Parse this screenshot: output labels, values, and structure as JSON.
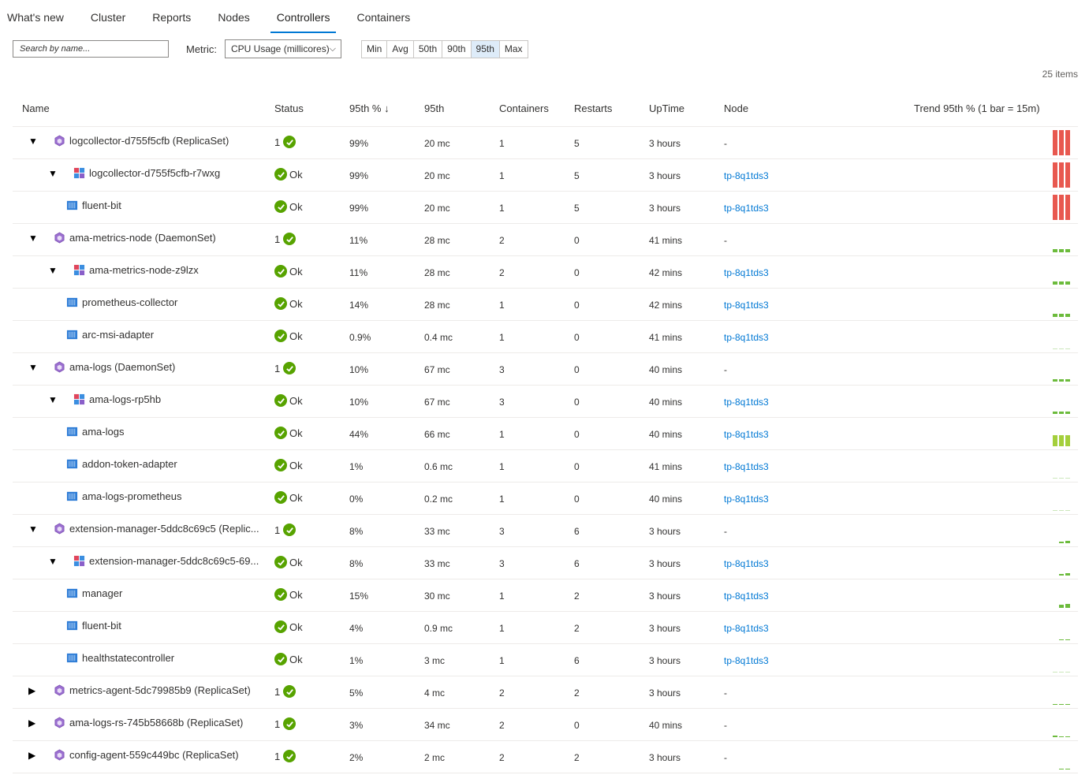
{
  "tabs": [
    "What's new",
    "Cluster",
    "Reports",
    "Nodes",
    "Controllers",
    "Containers"
  ],
  "active_tab": "Controllers",
  "search": {
    "placeholder": "Search by name..."
  },
  "metric": {
    "label": "Metric:",
    "selected": "CPU Usage (millicores)"
  },
  "aggregations": [
    "Min",
    "Avg",
    "50th",
    "90th",
    "95th",
    "Max"
  ],
  "active_aggregation": "95th",
  "item_count": "25 items",
  "columns": {
    "name": "Name",
    "status": "Status",
    "pct": "95th % ↓",
    "val": "95th",
    "containers": "Containers",
    "restarts": "Restarts",
    "uptime": "UpTime",
    "node": "Node",
    "trend": "Trend 95th % (1 bar = 15m)"
  },
  "colors": {
    "red": "#e8584f",
    "green": "#6cbb3c",
    "lime": "#a4cf3c",
    "accent": "#0078d4",
    "ok": "#57a300"
  },
  "rows": [
    {
      "level": 0,
      "type": "controller",
      "expanded": true,
      "name": "logcollector-d755f5cfb (ReplicaSet)",
      "status": "1",
      "pct": "99%",
      "val": "20 mc",
      "containers": "1",
      "restarts": "5",
      "uptime": "3 hours",
      "node": "-",
      "trend": [
        0.99,
        0.99,
        0.99
      ],
      "trend_color": "red"
    },
    {
      "level": 1,
      "type": "pod",
      "expanded": true,
      "name": "logcollector-d755f5cfb-r7wxg",
      "status": "Ok",
      "pct": "99%",
      "val": "20 mc",
      "containers": "1",
      "restarts": "5",
      "uptime": "3 hours",
      "node": "tp-8q1tds3",
      "trend": [
        0.99,
        0.99,
        0.99
      ],
      "trend_color": "red"
    },
    {
      "level": 2,
      "type": "container",
      "name": "fluent-bit",
      "status": "Ok",
      "pct": "99%",
      "val": "20 mc",
      "containers": "1",
      "restarts": "5",
      "uptime": "3 hours",
      "node": "tp-8q1tds3",
      "trend": [
        0.99,
        0.99,
        0.99
      ],
      "trend_color": "red"
    },
    {
      "level": 0,
      "type": "controller",
      "expanded": true,
      "name": "ama-metrics-node (DaemonSet)",
      "status": "1",
      "pct": "11%",
      "val": "28 mc",
      "containers": "2",
      "restarts": "0",
      "uptime": "41 mins",
      "node": "-",
      "trend": [
        0.11,
        0.11,
        0.11
      ],
      "trend_color": "green"
    },
    {
      "level": 1,
      "type": "pod",
      "expanded": true,
      "name": "ama-metrics-node-z9lzx",
      "status": "Ok",
      "pct": "11%",
      "val": "28 mc",
      "containers": "2",
      "restarts": "0",
      "uptime": "42 mins",
      "node": "tp-8q1tds3",
      "trend": [
        0.11,
        0.11,
        0.11
      ],
      "trend_color": "green"
    },
    {
      "level": 2,
      "type": "container",
      "name": "prometheus-collector",
      "status": "Ok",
      "pct": "14%",
      "val": "28 mc",
      "containers": "1",
      "restarts": "0",
      "uptime": "42 mins",
      "node": "tp-8q1tds3",
      "trend": [
        0.14,
        0.14,
        0.14
      ],
      "trend_color": "green"
    },
    {
      "level": 2,
      "type": "container",
      "name": "arc-msi-adapter",
      "status": "Ok",
      "pct": "0.9%",
      "val": "0.4 mc",
      "containers": "1",
      "restarts": "0",
      "uptime": "41 mins",
      "node": "tp-8q1tds3",
      "trend": [
        0.01,
        0.01,
        0.01
      ],
      "trend_color": "green"
    },
    {
      "level": 0,
      "type": "controller",
      "expanded": true,
      "name": "ama-logs (DaemonSet)",
      "status": "1",
      "pct": "10%",
      "val": "67 mc",
      "containers": "3",
      "restarts": "0",
      "uptime": "40 mins",
      "node": "-",
      "trend": [
        0.1,
        0.1,
        0.1
      ],
      "trend_color": "green"
    },
    {
      "level": 1,
      "type": "pod",
      "expanded": true,
      "name": "ama-logs-rp5hb",
      "status": "Ok",
      "pct": "10%",
      "val": "67 mc",
      "containers": "3",
      "restarts": "0",
      "uptime": "40 mins",
      "node": "tp-8q1tds3",
      "trend": [
        0.1,
        0.1,
        0.1
      ],
      "trend_color": "green"
    },
    {
      "level": 2,
      "type": "container",
      "name": "ama-logs",
      "status": "Ok",
      "pct": "44%",
      "val": "66 mc",
      "containers": "1",
      "restarts": "0",
      "uptime": "40 mins",
      "node": "tp-8q1tds3",
      "trend": [
        0.44,
        0.44,
        0.44
      ],
      "trend_color": "lime"
    },
    {
      "level": 2,
      "type": "container",
      "name": "addon-token-adapter",
      "status": "Ok",
      "pct": "1%",
      "val": "0.6 mc",
      "containers": "1",
      "restarts": "0",
      "uptime": "41 mins",
      "node": "tp-8q1tds3",
      "trend": [
        0.01,
        0.01,
        0.01
      ],
      "trend_color": "green"
    },
    {
      "level": 2,
      "type": "container",
      "name": "ama-logs-prometheus",
      "status": "Ok",
      "pct": "0%",
      "val": "0.2 mc",
      "containers": "1",
      "restarts": "0",
      "uptime": "40 mins",
      "node": "tp-8q1tds3",
      "trend": [
        0,
        0,
        0
      ],
      "trend_color": "green"
    },
    {
      "level": 0,
      "type": "controller",
      "expanded": true,
      "name": "extension-manager-5ddc8c69c5 (Replic...",
      "status": "1",
      "pct": "8%",
      "val": "33 mc",
      "containers": "3",
      "restarts": "6",
      "uptime": "3 hours",
      "node": "-",
      "trend": [
        0.06,
        0.08
      ],
      "trend_color": "green"
    },
    {
      "level": 1,
      "type": "pod",
      "expanded": true,
      "name": "extension-manager-5ddc8c69c5-69...",
      "status": "Ok",
      "pct": "8%",
      "val": "33 mc",
      "containers": "3",
      "restarts": "6",
      "uptime": "3 hours",
      "node": "tp-8q1tds3",
      "trend": [
        0.06,
        0.08
      ],
      "trend_color": "green"
    },
    {
      "level": 2,
      "type": "container",
      "name": "manager",
      "status": "Ok",
      "pct": "15%",
      "val": "30 mc",
      "containers": "1",
      "restarts": "2",
      "uptime": "3 hours",
      "node": "tp-8q1tds3",
      "trend": [
        0.12,
        0.15
      ],
      "trend_color": "green"
    },
    {
      "level": 2,
      "type": "container",
      "name": "fluent-bit",
      "status": "Ok",
      "pct": "4%",
      "val": "0.9 mc",
      "containers": "1",
      "restarts": "2",
      "uptime": "3 hours",
      "node": "tp-8q1tds3",
      "trend": [
        0.02,
        0.03
      ],
      "trend_color": "green"
    },
    {
      "level": 2,
      "type": "container",
      "name": "healthstatecontroller",
      "status": "Ok",
      "pct": "1%",
      "val": "3 mc",
      "containers": "1",
      "restarts": "6",
      "uptime": "3 hours",
      "node": "tp-8q1tds3",
      "trend": [
        0.01,
        0.01,
        0.01
      ],
      "trend_color": "green"
    },
    {
      "level": 0,
      "type": "controller",
      "expanded": false,
      "name": "metrics-agent-5dc79985b9 (ReplicaSet)",
      "status": "1",
      "pct": "5%",
      "val": "4 mc",
      "containers": "2",
      "restarts": "2",
      "uptime": "3 hours",
      "node": "-",
      "trend": [
        0.03,
        0.03,
        0.03
      ],
      "trend_color": "green"
    },
    {
      "level": 0,
      "type": "controller",
      "expanded": false,
      "name": "ama-logs-rs-745b58668b (ReplicaSet)",
      "status": "1",
      "pct": "3%",
      "val": "34 mc",
      "containers": "2",
      "restarts": "0",
      "uptime": "40 mins",
      "node": "-",
      "trend": [
        0.05,
        0.02,
        0.02
      ],
      "trend_color": "green"
    },
    {
      "level": 0,
      "type": "controller",
      "expanded": false,
      "name": "config-agent-559c449bc (ReplicaSet)",
      "status": "1",
      "pct": "2%",
      "val": "2 mc",
      "containers": "2",
      "restarts": "2",
      "uptime": "3 hours",
      "node": "-",
      "trend": [
        0.02,
        0.02
      ],
      "trend_color": "green"
    }
  ]
}
